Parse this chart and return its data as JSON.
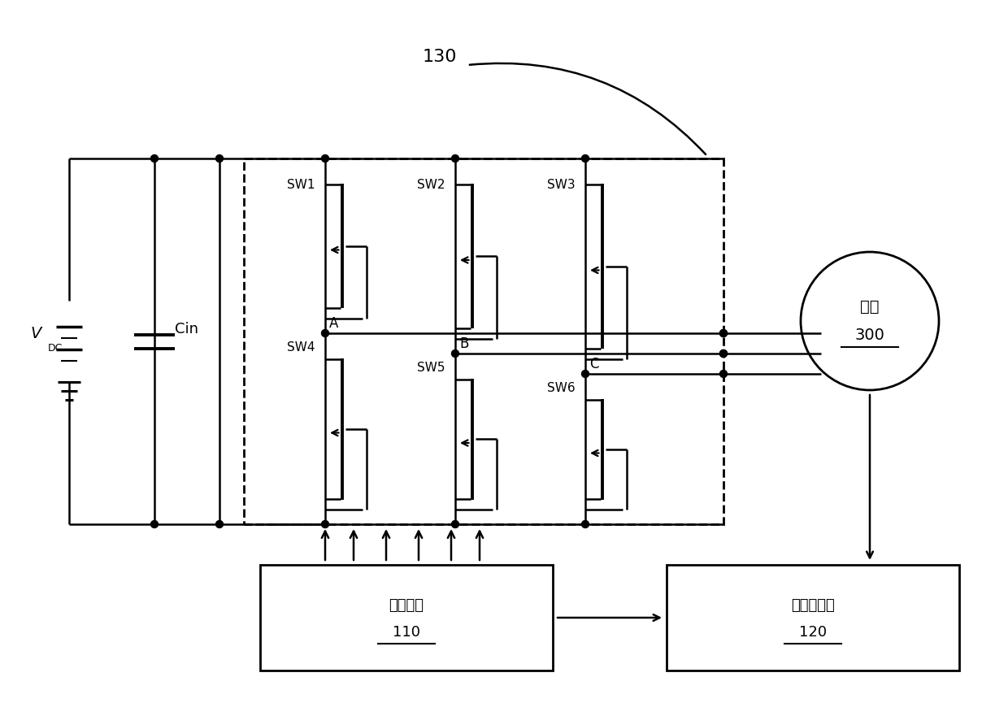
{
  "bg_color": "#ffffff",
  "text_color": "#000000",
  "label_130": "130",
  "label_vdc": "V",
  "label_vdc_sub": "DC",
  "label_cin": "Cin",
  "sw_labels_top": [
    "SW1",
    "SW2",
    "SW3"
  ],
  "sw_labels_bot": [
    "SW4",
    "SW5",
    "SW6"
  ],
  "phase_labels": [
    "A",
    "B",
    "C"
  ],
  "label_motor_line1": "电机",
  "label_motor_line2": "300",
  "label_control_line1": "控制电路",
  "label_control_line2": "110",
  "label_sensor_line1": "位置传感器",
  "label_sensor_line2": "120"
}
